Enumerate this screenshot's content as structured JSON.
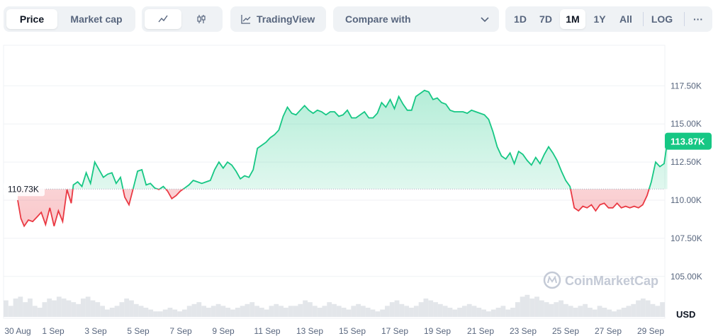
{
  "toolbar": {
    "price_label": "Price",
    "marketcap_label": "Market cap",
    "tradingview_label": "TradingView",
    "compare_label": "Compare with",
    "ranges": [
      "1D",
      "7D",
      "1M",
      "1Y",
      "All"
    ],
    "active_range": "1M",
    "log_label": "LOG",
    "more_label": "···"
  },
  "watermark": "CoinMarketCap",
  "currency_label": "USD",
  "colors": {
    "up": "#16c784",
    "down": "#ea3943",
    "accent": "#0d1421"
  },
  "chart_data": {
    "type": "area",
    "baseline": 110730,
    "baseline_label": "110.73K",
    "last_value": 113870,
    "last_label": "113.87K",
    "y_ticks": [
      {
        "value": 105000,
        "label": "105.00K"
      },
      {
        "value": 107500,
        "label": "107.50K"
      },
      {
        "value": 110000,
        "label": "110.00K"
      },
      {
        "value": 112500,
        "label": "112.50K"
      },
      {
        "value": 115000,
        "label": "115.00K"
      },
      {
        "value": 117500,
        "label": "117.50K"
      }
    ],
    "x_ticks": [
      "30 Aug",
      "1 Sep",
      "3 Sep",
      "5 Sep",
      "7 Sep",
      "9 Sep",
      "11 Sep",
      "13 Sep",
      "15 Sep",
      "17 Sep",
      "19 Sep",
      "21 Sep",
      "23 Sep",
      "25 Sep",
      "27 Sep",
      "29 Sep"
    ],
    "points": [
      [
        0,
        110000
      ],
      [
        0.15,
        108800
      ],
      [
        0.3,
        108300
      ],
      [
        0.5,
        108700
      ],
      [
        0.7,
        108600
      ],
      [
        0.9,
        108900
      ],
      [
        1.1,
        109200
      ],
      [
        1.3,
        108400
      ],
      [
        1.5,
        109500
      ],
      [
        1.7,
        108300
      ],
      [
        1.9,
        109300
      ],
      [
        2.1,
        108600
      ],
      [
        2.3,
        110700
      ],
      [
        2.5,
        109800
      ],
      [
        2.6,
        111000
      ],
      [
        2.8,
        111200
      ],
      [
        3.0,
        110900
      ],
      [
        3.2,
        111800
      ],
      [
        3.4,
        111100
      ],
      [
        3.6,
        112500
      ],
      [
        3.8,
        112000
      ],
      [
        4.0,
        111500
      ],
      [
        4.2,
        111700
      ],
      [
        4.4,
        111800
      ],
      [
        4.6,
        111100
      ],
      [
        4.8,
        111500
      ],
      [
        5.0,
        110200
      ],
      [
        5.2,
        109700
      ],
      [
        5.4,
        110800
      ],
      [
        5.6,
        111900
      ],
      [
        5.8,
        112000
      ],
      [
        6.0,
        111000
      ],
      [
        6.2,
        111100
      ],
      [
        6.4,
        110800
      ],
      [
        6.6,
        110700
      ],
      [
        6.8,
        110900
      ],
      [
        7.0,
        110600
      ],
      [
        7.2,
        110100
      ],
      [
        7.4,
        110300
      ],
      [
        7.6,
        110600
      ],
      [
        7.8,
        110800
      ],
      [
        8.0,
        111000
      ],
      [
        8.2,
        111300
      ],
      [
        8.4,
        111200
      ],
      [
        8.6,
        111100
      ],
      [
        8.8,
        111200
      ],
      [
        9.0,
        111300
      ],
      [
        9.2,
        112000
      ],
      [
        9.4,
        112500
      ],
      [
        9.6,
        112100
      ],
      [
        9.8,
        112500
      ],
      [
        10.0,
        112300
      ],
      [
        10.2,
        111900
      ],
      [
        10.4,
        111400
      ],
      [
        10.6,
        111600
      ],
      [
        10.8,
        111500
      ],
      [
        11.0,
        112000
      ],
      [
        11.2,
        113400
      ],
      [
        11.4,
        113600
      ],
      [
        11.6,
        113800
      ],
      [
        11.8,
        114100
      ],
      [
        12.0,
        114300
      ],
      [
        12.2,
        114600
      ],
      [
        12.4,
        115500
      ],
      [
        12.6,
        116100
      ],
      [
        12.8,
        115700
      ],
      [
        13.0,
        115600
      ],
      [
        13.2,
        115900
      ],
      [
        13.4,
        116200
      ],
      [
        13.6,
        115900
      ],
      [
        13.8,
        115700
      ],
      [
        14.0,
        115900
      ],
      [
        14.2,
        115800
      ],
      [
        14.4,
        115600
      ],
      [
        14.6,
        115800
      ],
      [
        14.8,
        115800
      ],
      [
        15.0,
        115500
      ],
      [
        15.2,
        115600
      ],
      [
        15.4,
        115900
      ],
      [
        15.6,
        115400
      ],
      [
        15.8,
        115400
      ],
      [
        16.0,
        115600
      ],
      [
        16.2,
        115800
      ],
      [
        16.4,
        115400
      ],
      [
        16.6,
        115400
      ],
      [
        16.8,
        115700
      ],
      [
        17.0,
        116400
      ],
      [
        17.2,
        116100
      ],
      [
        17.4,
        116600
      ],
      [
        17.6,
        116000
      ],
      [
        17.8,
        116800
      ],
      [
        18.0,
        116300
      ],
      [
        18.2,
        115900
      ],
      [
        18.4,
        115900
      ],
      [
        18.6,
        116800
      ],
      [
        18.8,
        117000
      ],
      [
        19.0,
        117200
      ],
      [
        19.2,
        117100
      ],
      [
        19.4,
        116600
      ],
      [
        19.6,
        116700
      ],
      [
        19.8,
        116400
      ],
      [
        20.0,
        116300
      ],
      [
        20.2,
        115900
      ],
      [
        20.4,
        115800
      ],
      [
        20.6,
        115800
      ],
      [
        20.8,
        115800
      ],
      [
        21.0,
        115700
      ],
      [
        21.2,
        115900
      ],
      [
        21.4,
        115800
      ],
      [
        21.6,
        115700
      ],
      [
        21.8,
        115600
      ],
      [
        22.0,
        115300
      ],
      [
        22.2,
        114500
      ],
      [
        22.4,
        113500
      ],
      [
        22.6,
        112900
      ],
      [
        22.8,
        112700
      ],
      [
        23.0,
        113100
      ],
      [
        23.2,
        112400
      ],
      [
        23.4,
        113200
      ],
      [
        23.6,
        113000
      ],
      [
        23.8,
        112600
      ],
      [
        24.0,
        112300
      ],
      [
        24.2,
        112800
      ],
      [
        24.4,
        112400
      ],
      [
        24.6,
        113000
      ],
      [
        24.8,
        113500
      ],
      [
        25.0,
        113100
      ],
      [
        25.2,
        112600
      ],
      [
        25.4,
        111900
      ],
      [
        25.6,
        111300
      ],
      [
        25.8,
        110900
      ],
      [
        26.0,
        109500
      ],
      [
        26.2,
        109300
      ],
      [
        26.4,
        109600
      ],
      [
        26.6,
        109500
      ],
      [
        26.8,
        109700
      ],
      [
        27.0,
        109300
      ],
      [
        27.2,
        109700
      ],
      [
        27.4,
        109800
      ],
      [
        27.6,
        109500
      ],
      [
        27.8,
        109500
      ],
      [
        28.0,
        109800
      ],
      [
        28.2,
        109500
      ],
      [
        28.4,
        109600
      ],
      [
        28.6,
        109500
      ],
      [
        28.8,
        109600
      ],
      [
        29.0,
        109500
      ],
      [
        29.2,
        109700
      ],
      [
        29.4,
        110300
      ],
      [
        29.6,
        111200
      ],
      [
        29.8,
        112500
      ],
      [
        30.0,
        112200
      ],
      [
        30.2,
        112400
      ],
      [
        30.35,
        113870
      ]
    ],
    "volume": [
      0.45,
      0.3,
      0.5,
      0.55,
      0.4,
      0.5,
      0.3,
      0.25,
      0.4,
      0.5,
      0.45,
      0.55,
      0.5,
      0.45,
      0.4,
      0.35,
      0.5,
      0.55,
      0.45,
      0.4,
      0.3,
      0.2,
      0.25,
      0.3,
      0.4,
      0.5,
      0.45,
      0.35,
      0.3,
      0.25,
      0.2,
      0.15,
      0.15,
      0.2,
      0.25,
      0.2,
      0.15,
      0.2,
      0.3,
      0.35,
      0.4,
      0.3,
      0.25,
      0.3,
      0.35,
      0.3,
      0.25,
      0.2,
      0.25,
      0.3,
      0.35,
      0.4,
      0.3,
      0.25,
      0.2,
      0.3,
      0.35,
      0.3,
      0.25,
      0.3,
      0.3,
      0.35,
      0.45,
      0.4,
      0.3,
      0.25,
      0.3,
      0.4,
      0.35,
      0.3,
      0.25,
      0.2,
      0.3,
      0.35,
      0.3,
      0.25,
      0.2,
      0.15,
      0.2,
      0.3,
      0.4,
      0.45,
      0.35,
      0.3,
      0.25,
      0.3,
      0.4,
      0.5,
      0.45,
      0.4,
      0.35,
      0.3,
      0.25,
      0.2,
      0.25,
      0.3,
      0.35,
      0.3,
      0.25,
      0.2,
      0.15,
      0.2,
      0.25,
      0.3,
      0.2,
      0.25,
      0.4,
      0.55,
      0.6,
      0.5,
      0.55,
      0.45,
      0.4,
      0.35,
      0.4,
      0.45,
      0.35,
      0.3,
      0.25,
      0.3,
      0.35,
      0.25,
      0.2,
      0.3,
      0.25,
      0.2,
      0.15,
      0.2,
      0.25,
      0.3,
      0.35,
      0.45,
      0.5,
      0.45,
      0.35,
      0.3,
      0.4
    ]
  }
}
